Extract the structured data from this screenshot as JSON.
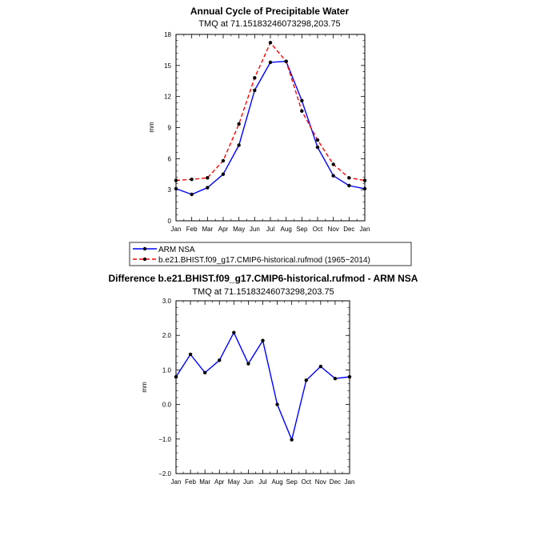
{
  "chart_data": [
    {
      "type": "line",
      "title": "Annual Cycle of Precipitable Water",
      "subtitle": "TMQ  at  71.15183246073298,203.75",
      "ylabel": "mm",
      "xlabel": "",
      "ylim": [
        0,
        18
      ],
      "yticks": [
        0,
        3,
        6,
        9,
        12,
        15,
        18
      ],
      "ytick_labels": [
        "0",
        "3",
        "6",
        "9",
        "12",
        "15",
        "18"
      ],
      "categories": [
        "Jan",
        "Feb",
        "Mar",
        "Apr",
        "May",
        "Jun",
        "Jul",
        "Aug",
        "Sep",
        "Oct",
        "Nov",
        "Dec",
        "Jan"
      ],
      "series": [
        {
          "name": "ARM  NSA",
          "color": "#0000ff",
          "dash": "solid",
          "values": [
            3.1,
            2.55,
            3.2,
            4.5,
            7.3,
            12.6,
            15.3,
            15.4,
            11.6,
            7.1,
            4.35,
            3.4,
            3.1
          ]
        },
        {
          "name": "b.e21.BHIST.f09_g17.CMIP6-historical.rufmod (1965−2014)",
          "color": "#ff0000",
          "dash": "dashed",
          "values": [
            3.9,
            4.0,
            4.15,
            5.8,
            9.35,
            13.8,
            17.2,
            15.4,
            10.6,
            7.8,
            5.45,
            4.15,
            3.9
          ]
        }
      ],
      "legend_position": "below"
    },
    {
      "type": "line",
      "title": "Difference b.e21.BHIST.f09_g17.CMIP6-historical.rufmod - ARM NSA",
      "subtitle": "TMQ  at  71.15183246073298,203.75",
      "ylabel": "mm",
      "xlabel": "",
      "ylim": [
        -2,
        3
      ],
      "yticks": [
        -2,
        -1,
        0,
        1,
        2,
        3
      ],
      "ytick_labels": [
        "−2.0",
        "−1.0",
        "0.0",
        "1.0",
        "2.0",
        "3.0"
      ],
      "categories": [
        "Jan",
        "Feb",
        "Mar",
        "Apr",
        "May",
        "Jun",
        "Jul",
        "Aug",
        "Sep",
        "Oct",
        "Nov",
        "Dec",
        "Jan"
      ],
      "series": [
        {
          "name": "Difference",
          "color": "#0000ff",
          "dash": "solid",
          "values": [
            0.8,
            1.45,
            0.92,
            1.28,
            2.08,
            1.18,
            1.85,
            0.0,
            -1.02,
            0.7,
            1.1,
            0.75,
            0.8
          ]
        }
      ]
    }
  ]
}
